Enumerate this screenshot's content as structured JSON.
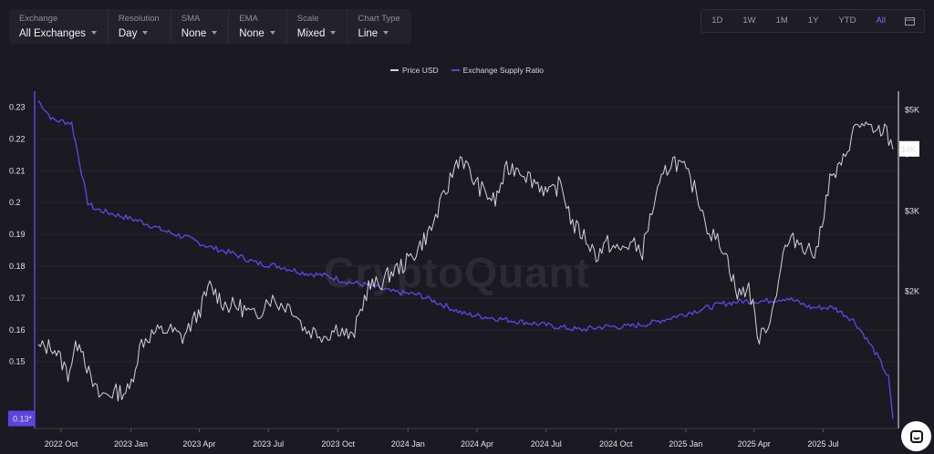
{
  "toolbar": {
    "items": [
      {
        "label": "Exchange",
        "value": "All Exchanges"
      },
      {
        "label": "Resolution",
        "value": "Day"
      },
      {
        "label": "SMA",
        "value": "None"
      },
      {
        "label": "EMA",
        "value": "None"
      },
      {
        "label": "Scale",
        "value": "Mixed"
      },
      {
        "label": "Chart Type",
        "value": "Line"
      }
    ]
  },
  "ranges": [
    "1D",
    "1W",
    "1M",
    "1Y",
    "YTD",
    "All"
  ],
  "active_range": "All",
  "watermark": "CryptoQuant",
  "colors": {
    "background": "#1b1a22",
    "price": "#d4d4d8",
    "ratio": "#5b44e0",
    "accent": "#7d6bff"
  },
  "icons": [
    "caret-down-icon",
    "calendar-icon",
    "chat-icon"
  ],
  "chart_data": {
    "type": "line",
    "legend": "top-center",
    "x_ticks": [
      "2022 Oct",
      "2023 Jan",
      "2023 Apr",
      "2023 Jul",
      "2023 Oct",
      "2024 Jan",
      "2024 Apr",
      "2024 Jul",
      "2024 Oct",
      "2025 Jan",
      "2025 Apr",
      "2025 Jul"
    ],
    "left_axis": {
      "ticks": [
        "0.23",
        "0.22",
        "0.21",
        "0.2",
        "0.19",
        "0.18",
        "0.17",
        "0.16",
        "0.15"
      ],
      "range": [
        0.129,
        0.235
      ]
    },
    "right_axis": {
      "ticks": [
        "$5K",
        "$4K",
        "$3K",
        "$2K"
      ],
      "scale": "log",
      "range": [
        1000,
        5500
      ]
    },
    "current_left": "0.13*",
    "current_right": "$4K",
    "series": [
      {
        "name": "Price USD",
        "axis": "right",
        "x": [
          "2022-09-01",
          "2022-09-20",
          "2022-10-10",
          "2022-10-25",
          "2022-11-09",
          "2022-11-20",
          "2022-12-10",
          "2022-12-30",
          "2023-01-15",
          "2023-01-31",
          "2023-02-20",
          "2023-03-10",
          "2023-03-31",
          "2023-04-15",
          "2023-05-05",
          "2023-05-25",
          "2023-06-15",
          "2023-07-01",
          "2023-07-15",
          "2023-08-01",
          "2023-08-18",
          "2023-09-01",
          "2023-09-15",
          "2023-10-01",
          "2023-10-20",
          "2023-11-10",
          "2023-11-25",
          "2023-12-10",
          "2023-12-28",
          "2024-01-12",
          "2024-02-01",
          "2024-02-20",
          "2024-03-05",
          "2024-03-12",
          "2024-03-25",
          "2024-04-10",
          "2024-04-25",
          "2024-05-10",
          "2024-05-25",
          "2024-06-10",
          "2024-06-25",
          "2024-07-05",
          "2024-07-20",
          "2024-08-05",
          "2024-08-20",
          "2024-09-05",
          "2024-09-20",
          "2024-10-05",
          "2024-10-20",
          "2024-11-05",
          "2024-11-20",
          "2024-12-05",
          "2024-12-15",
          "2024-12-30",
          "2025-01-15",
          "2025-02-01",
          "2025-02-20",
          "2025-03-10",
          "2025-03-25",
          "2025-04-08",
          "2025-04-25",
          "2025-05-12",
          "2025-05-25",
          "2025-06-10",
          "2025-06-22",
          "2025-07-10",
          "2025-07-25",
          "2025-08-10",
          "2025-08-24",
          "2025-09-05",
          "2025-09-20",
          "2025-10-01"
        ],
        "values": [
          1500,
          1520,
          1320,
          1580,
          1270,
          1180,
          1200,
          1210,
          1550,
          1620,
          1650,
          1580,
          1790,
          2050,
          1870,
          1850,
          1750,
          1940,
          1880,
          1850,
          1650,
          1630,
          1600,
          1670,
          1570,
          2050,
          2080,
          2200,
          2300,
          2450,
          2750,
          3300,
          3850,
          3950,
          3550,
          3300,
          3150,
          3700,
          3750,
          3550,
          3400,
          3250,
          3450,
          2800,
          2650,
          2400,
          2550,
          2450,
          2550,
          2450,
          3100,
          3650,
          3900,
          3700,
          3300,
          2700,
          2500,
          1950,
          2050,
          1550,
          1800,
          2500,
          2600,
          2500,
          2400,
          3500,
          3750,
          4500,
          4700,
          4400,
          4550,
          4100
        ]
      },
      {
        "name": "Exchange Supply Ratio",
        "axis": "left",
        "x": [
          "2022-09-01",
          "2022-09-20",
          "2022-10-15",
          "2022-11-05",
          "2022-11-15",
          "2022-12-15",
          "2023-01-15",
          "2023-02-15",
          "2023-03-15",
          "2023-04-15",
          "2023-05-15",
          "2023-06-15",
          "2023-07-15",
          "2023-08-15",
          "2023-09-15",
          "2023-10-15",
          "2023-11-10",
          "2023-12-10",
          "2024-01-15",
          "2024-02-15",
          "2024-03-15",
          "2024-04-15",
          "2024-05-15",
          "2024-06-15",
          "2024-07-15",
          "2024-08-15",
          "2024-09-15",
          "2024-10-15",
          "2024-11-15",
          "2024-12-15",
          "2025-01-15",
          "2025-02-15",
          "2025-03-15",
          "2025-04-15",
          "2025-05-15",
          "2025-06-15",
          "2025-07-15",
          "2025-08-10",
          "2025-08-25",
          "2025-09-10",
          "2025-09-25",
          "2025-10-01"
        ],
        "values": [
          0.232,
          0.226,
          0.225,
          0.2,
          0.198,
          0.196,
          0.194,
          0.191,
          0.189,
          0.186,
          0.184,
          0.181,
          0.18,
          0.178,
          0.177,
          0.175,
          0.174,
          0.172,
          0.171,
          0.168,
          0.165,
          0.164,
          0.163,
          0.162,
          0.161,
          0.16,
          0.161,
          0.161,
          0.162,
          0.164,
          0.166,
          0.168,
          0.169,
          0.169,
          0.17,
          0.167,
          0.167,
          0.163,
          0.158,
          0.152,
          0.145,
          0.132
        ]
      }
    ]
  }
}
